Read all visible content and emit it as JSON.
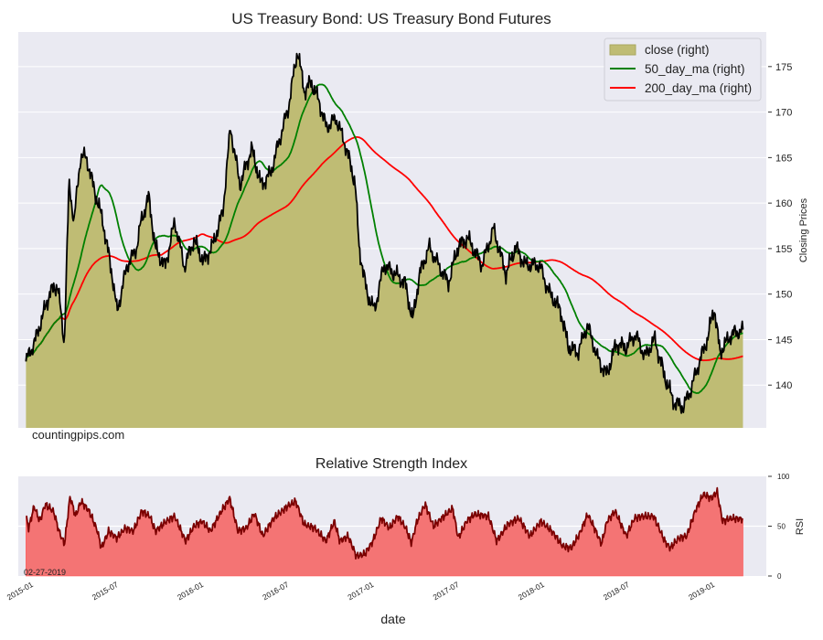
{
  "chart_data": [
    {
      "type": "area",
      "title": "US Treasury Bond: US Treasury Bond Futures",
      "ylabel": "Closing Prices",
      "ylim": [
        135.3,
        178.8
      ],
      "xlim": [
        2014.91,
        2019.3
      ],
      "yticks": [
        140,
        145,
        150,
        155,
        160,
        165,
        170,
        175
      ],
      "watermark": "countingpips.com",
      "legend": {
        "placement": "top-right",
        "entries": [
          "close (right)",
          "50_day_ma (right)",
          "200_day_ma (right)"
        ]
      },
      "x_units": "decimal year",
      "close_keypoints": [
        [
          2014.955,
          142.6
        ],
        [
          2015.011,
          145
        ],
        [
          2015.096,
          150.2
        ],
        [
          2015.141,
          151
        ],
        [
          2015.18,
          144.6
        ],
        [
          2015.208,
          162.2
        ],
        [
          2015.237,
          158
        ],
        [
          2015.276,
          165.2
        ],
        [
          2015.31,
          165
        ],
        [
          2015.349,
          162
        ],
        [
          2015.406,
          158
        ],
        [
          2015.462,
          152
        ],
        [
          2015.49,
          148
        ],
        [
          2015.546,
          153
        ],
        [
          2015.603,
          155
        ],
        [
          2015.631,
          158
        ],
        [
          2015.676,
          160.7
        ],
        [
          2015.715,
          155
        ],
        [
          2015.772,
          153
        ],
        [
          2015.828,
          158
        ],
        [
          2015.885,
          153
        ],
        [
          2015.941,
          156
        ],
        [
          2015.997,
          153.5
        ],
        [
          2016.054,
          155.5
        ],
        [
          2016.11,
          159
        ],
        [
          2016.155,
          168.3
        ],
        [
          2016.211,
          162
        ],
        [
          2016.279,
          166
        ],
        [
          2016.335,
          162
        ],
        [
          2016.392,
          163.3
        ],
        [
          2016.448,
          167.3
        ],
        [
          2016.493,
          170.3
        ],
        [
          2016.549,
          176.8
        ],
        [
          2016.589,
          172.3
        ],
        [
          2016.628,
          173.3
        ],
        [
          2016.673,
          171.3
        ],
        [
          2016.718,
          168.3
        ],
        [
          2016.775,
          169.3
        ],
        [
          2016.831,
          166.3
        ],
        [
          2016.887,
          162.2
        ],
        [
          2016.91,
          155.2
        ],
        [
          2016.955,
          150.2
        ],
        [
          2017.0,
          148.2
        ],
        [
          2017.056,
          153.2
        ],
        [
          2017.124,
          152.2
        ],
        [
          2017.18,
          151.2
        ],
        [
          2017.225,
          147.1
        ],
        [
          2017.265,
          152.2
        ],
        [
          2017.321,
          155.2
        ],
        [
          2017.377,
          153.2
        ],
        [
          2017.434,
          151.2
        ],
        [
          2017.49,
          155.2
        ],
        [
          2017.546,
          156.2
        ],
        [
          2017.631,
          153.2
        ],
        [
          2017.699,
          157.2
        ],
        [
          2017.772,
          152.2
        ],
        [
          2017.828,
          155.2
        ],
        [
          2017.885,
          153.2
        ],
        [
          2017.969,
          153.2
        ],
        [
          2018.025,
          150.2
        ],
        [
          2018.093,
          148.2
        ],
        [
          2018.138,
          144.2
        ],
        [
          2018.194,
          143.6
        ],
        [
          2018.251,
          146.6
        ],
        [
          2018.307,
          143.1
        ],
        [
          2018.363,
          141.1
        ],
        [
          2018.42,
          144.6
        ],
        [
          2018.476,
          144.1
        ],
        [
          2018.532,
          145.6
        ],
        [
          2018.589,
          143.1
        ],
        [
          2018.645,
          145.1
        ],
        [
          2018.701,
          141.1
        ],
        [
          2018.758,
          138.1
        ],
        [
          2018.814,
          137.6
        ],
        [
          2018.859,
          139.6
        ],
        [
          2018.899,
          142.1
        ],
        [
          2018.955,
          145.1
        ],
        [
          2018.994,
          148.6
        ],
        [
          2019.028,
          143.6
        ],
        [
          2019.096,
          145.6
        ],
        [
          2019.163,
          146.1
        ]
      ]
    },
    {
      "type": "area",
      "title": "Relative Strength Index",
      "ylabel": "RSI",
      "xlabel": "date",
      "ylim": [
        0,
        100
      ],
      "yticks": [
        0,
        50,
        100
      ],
      "date_note": "02-27-2019",
      "xtick_labels": [
        "2015-01",
        "2015-07",
        "2016-01",
        "2016-07",
        "2017-01",
        "2017-07",
        "2018-01",
        "2018-07",
        "2019-01"
      ],
      "xtick_values": [
        2015.0,
        2015.5,
        2016.0,
        2016.5,
        2017.0,
        2017.5,
        2018.0,
        2018.5,
        2019.0
      ],
      "x_units": "decimal year",
      "rsi_keypoints": [
        [
          2014.955,
          60
        ],
        [
          2014.971,
          48
        ],
        [
          2015.003,
          70
        ],
        [
          2015.036,
          55
        ],
        [
          2015.068,
          72
        ],
        [
          2015.117,
          65
        ],
        [
          2015.149,
          45
        ],
        [
          2015.181,
          32
        ],
        [
          2015.214,
          80
        ],
        [
          2015.246,
          60
        ],
        [
          2015.278,
          75
        ],
        [
          2015.327,
          65
        ],
        [
          2015.375,
          45
        ],
        [
          2015.398,
          28
        ],
        [
          2015.44,
          45
        ],
        [
          2015.488,
          38
        ],
        [
          2015.537,
          48
        ],
        [
          2015.585,
          45
        ],
        [
          2015.634,
          65
        ],
        [
          2015.682,
          60
        ],
        [
          2015.715,
          45
        ],
        [
          2015.779,
          55
        ],
        [
          2015.828,
          60
        ],
        [
          2015.892,
          35
        ],
        [
          2015.941,
          50
        ],
        [
          2015.989,
          55
        ],
        [
          2016.038,
          45
        ],
        [
          2016.102,
          65
        ],
        [
          2016.151,
          78
        ],
        [
          2016.199,
          45
        ],
        [
          2016.248,
          48
        ],
        [
          2016.296,
          63
        ],
        [
          2016.345,
          40
        ],
        [
          2016.409,
          58
        ],
        [
          2016.49,
          70
        ],
        [
          2016.539,
          75
        ],
        [
          2016.587,
          52
        ],
        [
          2016.652,
          48
        ],
        [
          2016.716,
          35
        ],
        [
          2016.765,
          55
        ],
        [
          2016.797,
          35
        ],
        [
          2016.846,
          40
        ],
        [
          2016.894,
          20
        ],
        [
          2016.943,
          22
        ],
        [
          2016.991,
          35
        ],
        [
          2017.04,
          58
        ],
        [
          2017.088,
          48
        ],
        [
          2017.137,
          60
        ],
        [
          2017.185,
          48
        ],
        [
          2017.217,
          33
        ],
        [
          2017.25,
          55
        ],
        [
          2017.298,
          72
        ],
        [
          2017.347,
          50
        ],
        [
          2017.395,
          58
        ],
        [
          2017.46,
          68
        ],
        [
          2017.492,
          38
        ],
        [
          2017.541,
          55
        ],
        [
          2017.589,
          62
        ],
        [
          2017.67,
          60
        ],
        [
          2017.718,
          35
        ],
        [
          2017.783,
          52
        ],
        [
          2017.848,
          58
        ],
        [
          2017.912,
          40
        ],
        [
          2017.977,
          55
        ],
        [
          2018.042,
          45
        ],
        [
          2018.106,
          30
        ],
        [
          2018.155,
          28
        ],
        [
          2018.203,
          42
        ],
        [
          2018.252,
          62
        ],
        [
          2018.3,
          45
        ],
        [
          2018.333,
          32
        ],
        [
          2018.365,
          55
        ],
        [
          2018.413,
          65
        ],
        [
          2018.478,
          40
        ],
        [
          2018.526,
          58
        ],
        [
          2018.575,
          60
        ],
        [
          2018.639,
          60
        ],
        [
          2018.704,
          35
        ],
        [
          2018.736,
          28
        ],
        [
          2018.785,
          38
        ],
        [
          2018.833,
          40
        ],
        [
          2018.882,
          65
        ],
        [
          2018.93,
          82
        ],
        [
          2018.979,
          78
        ],
        [
          2019.011,
          85
        ],
        [
          2019.043,
          55
        ],
        [
          2019.092,
          58
        ],
        [
          2019.163,
          57
        ]
      ]
    }
  ],
  "colors": {
    "plot_bg": "#eaeaf2",
    "close_fill": "#bfbc74",
    "close_line": "#000000",
    "ma50": "#008000",
    "ma200": "#ff0000",
    "rsi_fill": "#f47474",
    "rsi_line": "#7b0000"
  }
}
